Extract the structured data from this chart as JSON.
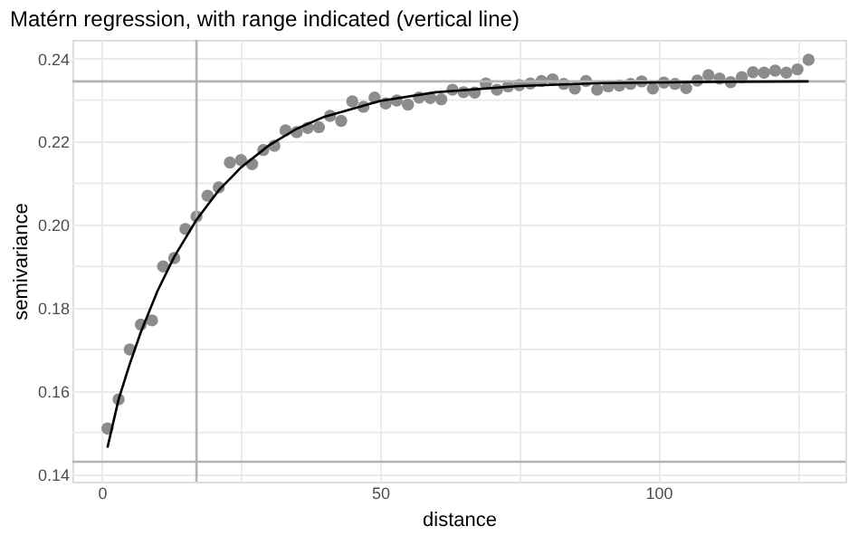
{
  "chart_data": {
    "type": "scatter",
    "title": "Matérn regression, with range indicated (vertical line)",
    "xlabel": "distance",
    "ylabel": "semivariance",
    "xlim": [
      -5.3,
      133.6
    ],
    "ylim": [
      0.1382,
      0.2445
    ],
    "xticks": [
      0,
      {
        "value": 25,
        "label": null
      },
      50,
      {
        "value": 75,
        "label": null
      },
      100,
      {
        "value": 125,
        "label": null
      }
    ],
    "yticks": [
      0.14,
      {
        "value": 0.15,
        "label": null
      },
      0.16,
      {
        "value": 0.17,
        "label": null
      },
      0.18,
      {
        "value": 0.19,
        "label": null
      },
      {
        "value": 0.2,
        "label": "0.20"
      },
      {
        "value": 0.21,
        "label": null
      },
      0.22,
      {
        "value": 0.23,
        "label": null
      },
      0.24
    ],
    "grid": true,
    "marker": "circle",
    "x": [
      1,
      3,
      5,
      7,
      9,
      11,
      13,
      15,
      17,
      19,
      21,
      23,
      25,
      27,
      29,
      31,
      33,
      35,
      37,
      39,
      41,
      43,
      45,
      47,
      49,
      51,
      53,
      55,
      57,
      59,
      61,
      63,
      65,
      67,
      69,
      71,
      73,
      75,
      77,
      79,
      81,
      83,
      85,
      87,
      89,
      91,
      93,
      95,
      97,
      99,
      101,
      103,
      105,
      107,
      109,
      111,
      113,
      115,
      117,
      119,
      121,
      123,
      125,
      127
    ],
    "series": [
      {
        "type": "scatter",
        "color": "#8c8c8c",
        "values": [
          0.151,
          0.158,
          0.17,
          0.176,
          0.177,
          0.19,
          0.192,
          0.199,
          0.202,
          0.207,
          0.209,
          0.215,
          0.2156,
          0.2146,
          0.218,
          0.219,
          0.2227,
          0.2223,
          0.2233,
          0.2235,
          0.2262,
          0.225,
          0.2297,
          0.2284,
          0.2306,
          0.2292,
          0.2299,
          0.2289,
          0.2306,
          0.2305,
          0.2302,
          0.2325,
          0.2319,
          0.2318,
          0.234,
          0.2325,
          0.2333,
          0.2336,
          0.234,
          0.2346,
          0.235,
          0.2339,
          0.2328,
          0.2346,
          0.2325,
          0.2333,
          0.2335,
          0.2339,
          0.2345,
          0.2328,
          0.2342,
          0.2339,
          0.2329,
          0.2347,
          0.236,
          0.2352,
          0.2343,
          0.2355,
          0.2367,
          0.2366,
          0.2371,
          0.2366,
          0.2374,
          0.2397
        ]
      },
      {
        "type": "line",
        "color": "#000000",
        "line_style": "solid",
        "marker": "none",
        "x": [
          1,
          3,
          5,
          7,
          10,
          13,
          17,
          21,
          25,
          30,
          35,
          40,
          50,
          60,
          75,
          90,
          110,
          127
        ],
        "values": [
          0.1464,
          0.158,
          0.1665,
          0.1742,
          0.1841,
          0.1923,
          0.2012,
          0.2083,
          0.2138,
          0.2191,
          0.2231,
          0.226,
          0.2298,
          0.2319,
          0.2334,
          0.2341,
          0.2344,
          0.2345
        ]
      }
    ],
    "ref_lines": [
      {
        "axis": "x",
        "value": 17,
        "label": null,
        "color": "#b3b3b3"
      },
      {
        "axis": "y",
        "value": 0.2345,
        "label": null,
        "color": "#b3b3b3"
      },
      {
        "axis": "y",
        "value": 0.143,
        "label": null,
        "color": "#b3b3b3"
      }
    ]
  }
}
